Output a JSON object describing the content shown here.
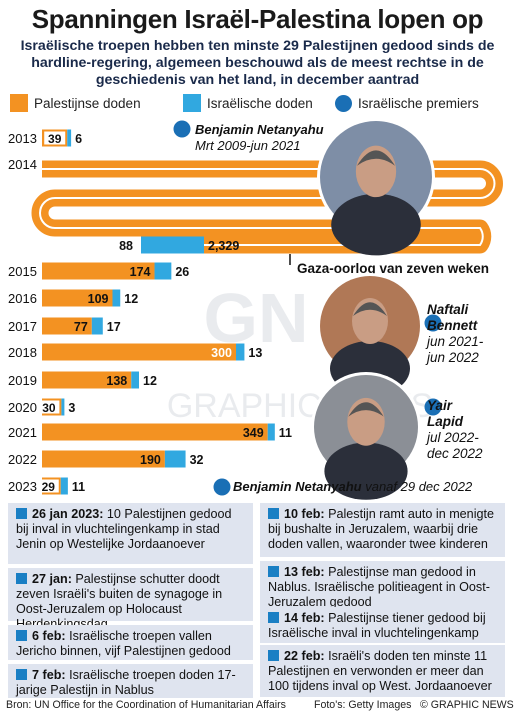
{
  "header": {
    "title": "Spanningen Israël-Palestina lopen op",
    "subtitle": "Israëlische troepen hebben ten minste 29 Palestijnen gedood sinds de hardline-regering, algemeen beschouwd als de meest rechtse in de geschiedenis van het land, in december aantrad"
  },
  "legend": {
    "palestinian": "Palestijnse doden",
    "israeli": "Israëlische doden",
    "premiers": "Israëlische premiers"
  },
  "colors": {
    "palestinian": "#f39222",
    "israeli": "#31a8e0",
    "premier": "#1a6fb5",
    "box": "#dfe4ef"
  },
  "chart_data": {
    "type": "bar",
    "categories": [
      "2013",
      "2014",
      "2015",
      "2016",
      "2017",
      "2018",
      "2019",
      "2020",
      "2021",
      "2022",
      "2023"
    ],
    "series": [
      {
        "name": "Palestijnse doden",
        "values": [
          39,
          2329,
          174,
          109,
          77,
          300,
          138,
          30,
          349,
          190,
          29
        ]
      },
      {
        "name": "Israëlische doden",
        "values": [
          6,
          88,
          26,
          12,
          17,
          13,
          12,
          3,
          11,
          32,
          11
        ]
      }
    ],
    "value_labels_palestinian": [
      "39",
      "2,329",
      "174",
      "109",
      "77",
      "300",
      "138",
      "30",
      "349",
      "190",
      "29"
    ],
    "value_labels_israeli": [
      "6",
      "88",
      "26",
      "12",
      "17",
      "13",
      "12",
      "3",
      "11",
      "32",
      "11"
    ],
    "annotation": "Gaza-oorlog van zeven weken"
  },
  "premiers": [
    {
      "name": "Benjamin Netanyahu",
      "dates": "Mrt 2009-jun 2021"
    },
    {
      "name": "Naftali Bennett",
      "name_line1": "Naftali",
      "name_line2": "Bennett",
      "dates_line1": "jun 2021-",
      "dates_line2": "jun 2022"
    },
    {
      "name": "Yair Lapid",
      "name_line1": "Yair",
      "name_line2": "Lapid",
      "dates_line1": "jul 2022-",
      "dates_line2": "dec 2022"
    },
    {
      "name": "Benjamin Netanyahu",
      "dates": "vanaf 29 dec 2022"
    }
  ],
  "events_left": [
    {
      "date": "26 jan 2023:",
      "text": " 10 Palestijnen gedood bij inval in vluchtelingenkamp in stad Jenin op Westelijke Jordaanoever"
    },
    {
      "date": "27 jan:",
      "text": " Palestijnse schutter doodt zeven Israëli's buiten de synagoge in Oost-Jeruzalem op Holocaust Herdenkingsdag"
    },
    {
      "date": "6 feb:",
      "text": " Israëlische troepen vallen Jericho binnen, vijf Palestijnen gedood"
    },
    {
      "date": "7 feb:",
      "text": " Israëlische troepen doden 17-jarige Palestijn in Nablus"
    }
  ],
  "events_right": [
    {
      "date": "10 feb:",
      "text": " Palestijn ramt auto in menigte bij bushalte in Jeruzalem, waarbij drie doden vallen, waaronder twee kinderen"
    },
    {
      "date": "13 feb:",
      "text": " Palestijnse man gedood in Nablus. Israëlische politieagent in Oost-Jeruzalem gedood"
    },
    {
      "date": "14 feb:",
      "text": " Palestijnse tiener gedood bij Israëlische inval in vluchtelingenkamp"
    },
    {
      "date": "22 feb:",
      "text": " Israëli's doden ten minste 11 Palestijnen en verwonden er meer dan 100 tijdens inval op West. Jordaanoever"
    }
  ],
  "footer": {
    "source": "Bron: UN Office for the Coordination of Humanitarian Affairs",
    "photos": "Foto's: Getty Images",
    "credit": "© GRAPHIC NEWS"
  },
  "watermark": "GRAPHIC NEWS"
}
